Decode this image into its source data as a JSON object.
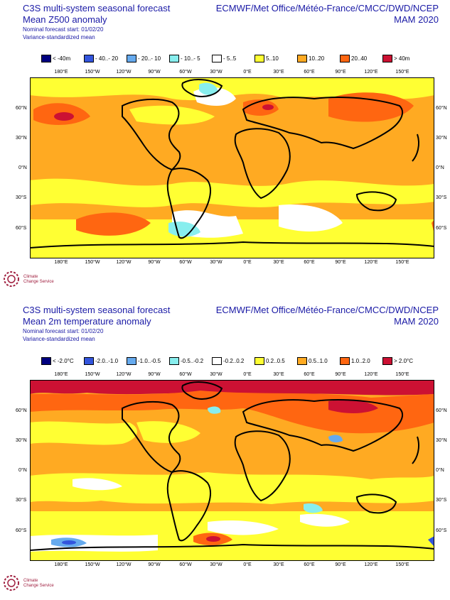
{
  "panels": [
    {
      "title_line1": "C3S multi-system seasonal forecast",
      "title_line2": "Mean Z500 anomaly",
      "subtitle_line1": "Nominal forecast start: 01/02/20",
      "subtitle_line2": "Variance-standardized mean",
      "centres": "ECMWF/Met Office/Météo-France/CMCC/DWD/NCEP",
      "season": "MAM 2020",
      "legend": [
        {
          "label": "< -40m",
          "color": "#000080"
        },
        {
          "label": "- 40..- 20",
          "color": "#3355dd"
        },
        {
          "label": "- 20..- 10",
          "color": "#66aaee"
        },
        {
          "label": "- 10..- 5",
          "color": "#88eeee"
        },
        {
          "label": "- 5..5",
          "color": "#ffffff"
        },
        {
          "label": "5..10",
          "color": "#ffff33"
        },
        {
          "label": "10..20",
          "color": "#ffaa22"
        },
        {
          "label": "20..40",
          "color": "#ff6611"
        },
        {
          "label": "> 40m",
          "color": "#cc1133"
        }
      ]
    },
    {
      "title_line1": "C3S multi-system seasonal forecast",
      "title_line2": "Mean 2m temperature anomaly",
      "subtitle_line1": "Nominal forecast start: 01/02/20",
      "subtitle_line2": "Variance-standardized mean",
      "centres": "ECMWF/Met Office/Météo-France/CMCC/DWD/NCEP",
      "season": "MAM 2020",
      "legend": [
        {
          "label": "< -2.0°C",
          "color": "#000080"
        },
        {
          "label": "-2.0..-1.0",
          "color": "#3355dd"
        },
        {
          "label": "-1.0..-0.5",
          "color": "#66aaee"
        },
        {
          "label": "-0.5..-0.2",
          "color": "#88eeee"
        },
        {
          "label": "-0.2..0.2",
          "color": "#ffffff"
        },
        {
          "label": "0.2..0.5",
          "color": "#ffff33"
        },
        {
          "label": "0.5..1.0",
          "color": "#ffaa22"
        },
        {
          "label": "1.0..2.0",
          "color": "#ff6611"
        },
        {
          "label": "> 2.0°C",
          "color": "#cc1133"
        }
      ]
    }
  ],
  "longitude_labels": [
    "180°E",
    "150°W",
    "120°W",
    "90°W",
    "60°W",
    "30°W",
    "0°E",
    "30°E",
    "60°E",
    "90°E",
    "120°E",
    "150°E"
  ],
  "latitude_labels_left": [
    "60°N",
    "30°N",
    "0°N",
    "30°S",
    "60°S"
  ],
  "latitude_labels_right": [
    "60°N",
    "30°N",
    "0°N",
    "30°S",
    "60°S"
  ],
  "logo": {
    "name": "Climate Change Service",
    "line1": "Climate",
    "line2": "Change Service"
  }
}
